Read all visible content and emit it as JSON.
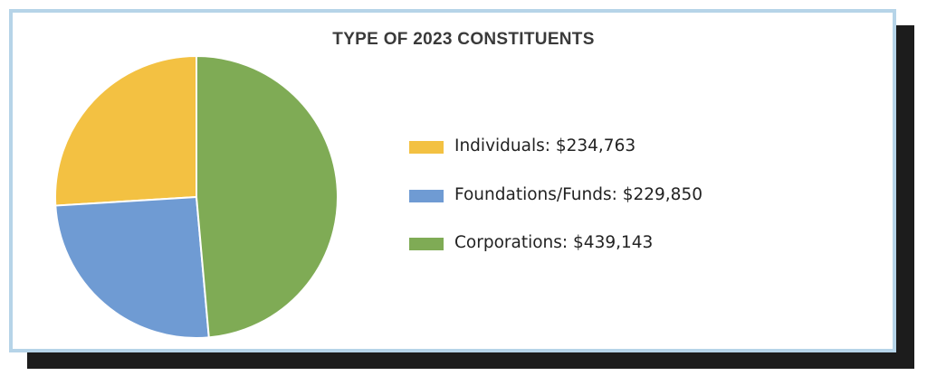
{
  "chart_data": {
    "type": "pie",
    "title": "TYPE OF 2023 CONSTITUENTS",
    "categories": [
      "Individuals",
      "Foundations/Funds",
      "Corporations"
    ],
    "values": [
      234763,
      229850,
      439143
    ],
    "colors": [
      "#f3c142",
      "#6f9bd3",
      "#7fab55"
    ],
    "legend": {
      "position": "right",
      "labels": [
        "Individuals: $234,763",
        "Foundations/Funds: $229,850",
        "Corporations: $439,143"
      ]
    }
  }
}
